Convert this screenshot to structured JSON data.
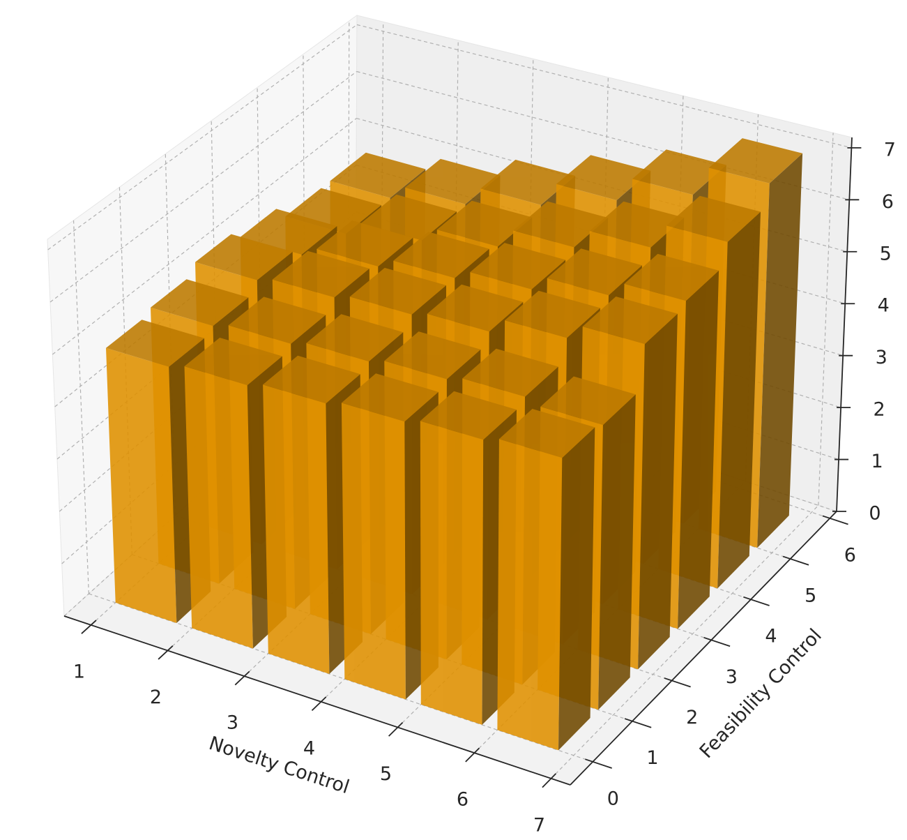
{
  "chart_data": {
    "type": "bar3d",
    "xlabel": "Novelty Control",
    "ylabel": "Feasibility Control",
    "x": [
      1,
      2,
      3,
      4,
      5,
      6
    ],
    "y": [
      0,
      1,
      2,
      3,
      4,
      5
    ],
    "values": [
      [
        4.9,
        5.0,
        5.1,
        5.2,
        5.3,
        5.4
      ],
      [
        5.0,
        5.1,
        5.2,
        5.3,
        5.4,
        5.3
      ],
      [
        5.2,
        5.3,
        5.4,
        5.5,
        5.8,
        6.1
      ],
      [
        5.0,
        5.2,
        5.4,
        5.6,
        5.9,
        6.2
      ],
      [
        4.7,
        5.0,
        5.3,
        5.7,
        6.1,
        6.6
      ],
      [
        4.7,
        5.0,
        5.4,
        5.9,
        6.4,
        7.0
      ]
    ],
    "color": "#ffa500",
    "xlim": [
      0.65,
      7.25
    ],
    "ylim": [
      -0.57,
      6.17
    ],
    "zlim": [
      0,
      7.2
    ],
    "xticks": [
      1,
      2,
      3,
      4,
      5,
      6,
      7
    ],
    "yticks": [
      0,
      1,
      2,
      3,
      4,
      5,
      6
    ],
    "zticks": [
      0,
      1,
      2,
      3,
      4,
      5,
      6,
      7
    ],
    "grid": true
  }
}
